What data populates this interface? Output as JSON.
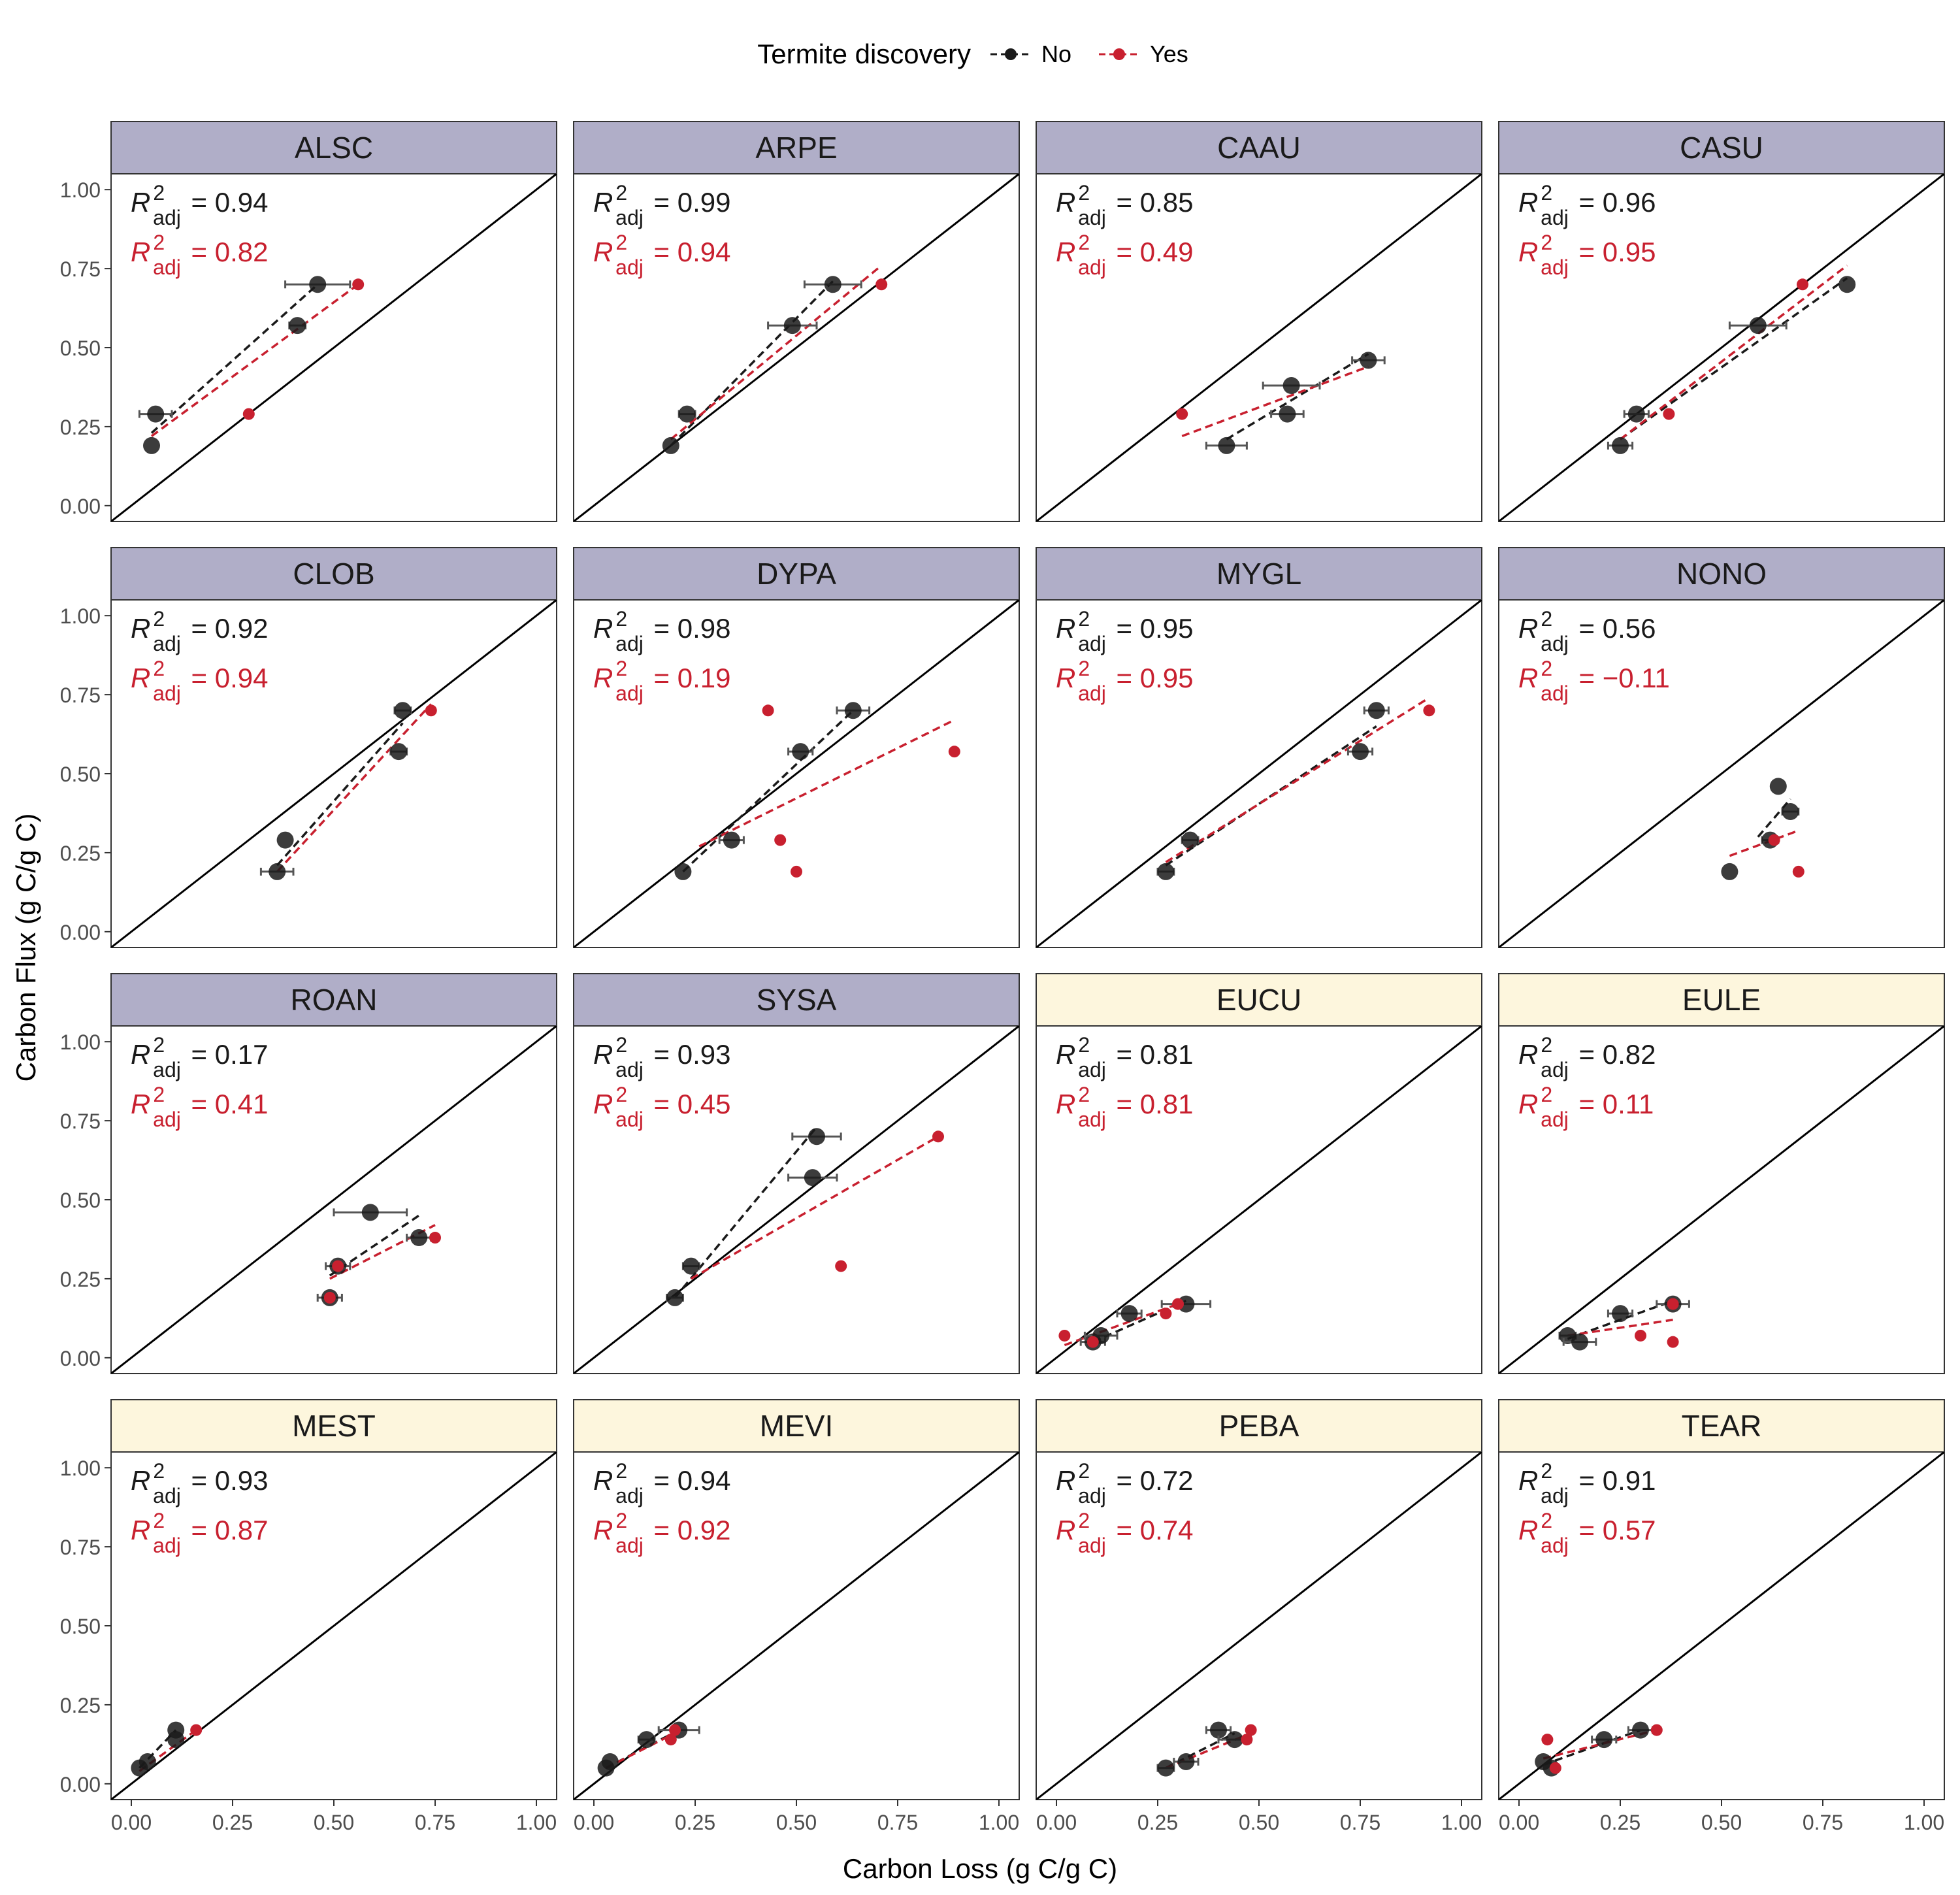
{
  "legend": {
    "title": "Termite discovery",
    "items": [
      {
        "label": "No",
        "color": "#1a1a1a"
      },
      {
        "label": "Yes",
        "color": "#c8202f"
      }
    ]
  },
  "axes": {
    "xlabel": "Carbon Loss (g C/g C)",
    "ylabel": "Carbon Flux (g C/g C)"
  },
  "colors": {
    "strip_purple": "#b0aec8",
    "strip_yellow": "#fdf6dd",
    "no_series": "#1a1a1a",
    "yes_series": "#c8202f"
  },
  "chart_data": {
    "type": "scatter",
    "layout": "faceted 4x4 grid",
    "xlim": [
      -0.05,
      1.05
    ],
    "ylim": [
      -0.05,
      1.05
    ],
    "xticks": [
      "0.00",
      "0.25",
      "0.50",
      "0.75",
      "1.00"
    ],
    "yticks": [
      "0.00",
      "0.25",
      "0.50",
      "0.75",
      "1.00"
    ],
    "reference_line": "1:1",
    "grid": false,
    "legend_position": "top",
    "facets": [
      {
        "name": "ALSC",
        "strip": "purple",
        "r2_no": "0.94",
        "r2_yes": "0.82",
        "no": [
          [
            0.05,
            0.19,
            0
          ],
          [
            0.06,
            0.29,
            0.04
          ],
          [
            0.41,
            0.57,
            0.02
          ],
          [
            0.46,
            0.7,
            0.08
          ]
        ],
        "yes": [
          [
            0.29,
            0.29
          ],
          [
            0.56,
            0.7
          ]
        ],
        "fit_no": [
          [
            0.05,
            0.23
          ],
          [
            0.46,
            0.7
          ]
        ],
        "fit_yes": [
          [
            0.05,
            0.22
          ],
          [
            0.56,
            0.7
          ]
        ]
      },
      {
        "name": "ARPE",
        "strip": "purple",
        "r2_no": "0.99",
        "r2_yes": "0.94",
        "no": [
          [
            0.19,
            0.19,
            0
          ],
          [
            0.23,
            0.29,
            0.02
          ],
          [
            0.49,
            0.57,
            0.06
          ],
          [
            0.59,
            0.7,
            0.07
          ]
        ],
        "yes": [
          [
            0.71,
            0.7
          ]
        ],
        "fit_no": [
          [
            0.19,
            0.19
          ],
          [
            0.59,
            0.71
          ]
        ],
        "fit_yes": [
          [
            0.19,
            0.21
          ],
          [
            0.71,
            0.76
          ]
        ]
      },
      {
        "name": "CAAU",
        "strip": "purple",
        "r2_no": "0.85",
        "r2_yes": "0.49",
        "no": [
          [
            0.42,
            0.19,
            0.05
          ],
          [
            0.57,
            0.29,
            0.04
          ],
          [
            0.58,
            0.38,
            0.07
          ],
          [
            0.77,
            0.46,
            0.04
          ]
        ],
        "yes": [
          [
            0.31,
            0.29
          ]
        ],
        "fit_no": [
          [
            0.42,
            0.21
          ],
          [
            0.77,
            0.48
          ]
        ],
        "fit_yes": [
          [
            0.31,
            0.22
          ],
          [
            0.77,
            0.44
          ]
        ]
      },
      {
        "name": "CASU",
        "strip": "purple",
        "r2_no": "0.96",
        "r2_yes": "0.95",
        "no": [
          [
            0.25,
            0.19,
            0.03
          ],
          [
            0.29,
            0.29,
            0.03
          ],
          [
            0.59,
            0.57,
            0.07
          ],
          [
            0.81,
            0.7,
            0
          ]
        ],
        "yes": [
          [
            0.37,
            0.29
          ],
          [
            0.7,
            0.7
          ]
        ],
        "fit_no": [
          [
            0.25,
            0.21
          ],
          [
            0.81,
            0.72
          ]
        ],
        "fit_yes": [
          [
            0.25,
            0.21
          ],
          [
            0.81,
            0.76
          ]
        ]
      },
      {
        "name": "CLOB",
        "strip": "purple",
        "r2_no": "0.92",
        "r2_yes": "0.94",
        "no": [
          [
            0.36,
            0.19,
            0.04
          ],
          [
            0.38,
            0.29,
            0
          ],
          [
            0.66,
            0.57,
            0.02
          ],
          [
            0.67,
            0.7,
            0.02
          ]
        ],
        "yes": [
          [
            0.74,
            0.7
          ]
        ],
        "fit_no": [
          [
            0.36,
            0.21
          ],
          [
            0.67,
            0.66
          ]
        ],
        "fit_yes": [
          [
            0.36,
            0.19
          ],
          [
            0.74,
            0.72
          ]
        ]
      },
      {
        "name": "DYPA",
        "strip": "purple",
        "r2_no": "0.98",
        "r2_yes": "0.19",
        "no": [
          [
            0.22,
            0.19,
            0
          ],
          [
            0.34,
            0.29,
            0.03
          ],
          [
            0.51,
            0.57,
            0.03
          ],
          [
            0.64,
            0.7,
            0.04
          ]
        ],
        "yes": [
          [
            0.43,
            0.7
          ],
          [
            0.46,
            0.29
          ],
          [
            0.5,
            0.19
          ],
          [
            0.89,
            0.57
          ]
        ],
        "fit_no": [
          [
            0.22,
            0.19
          ],
          [
            0.64,
            0.7
          ]
        ],
        "fit_yes": [
          [
            0.26,
            0.27
          ],
          [
            0.89,
            0.67
          ]
        ]
      },
      {
        "name": "MYGL",
        "strip": "purple",
        "r2_no": "0.95",
        "r2_yes": "0.95",
        "no": [
          [
            0.27,
            0.19,
            0.02
          ],
          [
            0.33,
            0.29,
            0.02
          ],
          [
            0.75,
            0.57,
            0.03
          ],
          [
            0.79,
            0.7,
            0.03
          ]
        ],
        "yes": [
          [
            0.92,
            0.7
          ]
        ],
        "fit_no": [
          [
            0.27,
            0.21
          ],
          [
            0.79,
            0.65
          ]
        ],
        "fit_yes": [
          [
            0.27,
            0.22
          ],
          [
            0.92,
            0.74
          ]
        ]
      },
      {
        "name": "NONO",
        "strip": "purple",
        "r2_no": "0.56",
        "r2_yes": "−0.11",
        "no": [
          [
            0.52,
            0.19,
            0
          ],
          [
            0.62,
            0.29,
            0.02
          ],
          [
            0.64,
            0.46,
            0
          ],
          [
            0.67,
            0.38,
            0.02
          ]
        ],
        "yes": [
          [
            0.63,
            0.29
          ],
          [
            0.69,
            0.19
          ]
        ],
        "fit_no": [
          [
            0.59,
            0.3
          ],
          [
            0.67,
            0.42
          ]
        ],
        "fit_yes": [
          [
            0.52,
            0.24
          ],
          [
            0.69,
            0.32
          ]
        ]
      },
      {
        "name": "ROAN",
        "strip": "purple",
        "r2_no": "0.17",
        "r2_yes": "0.41",
        "no": [
          [
            0.49,
            0.19,
            0.03
          ],
          [
            0.51,
            0.29,
            0.03
          ],
          [
            0.59,
            0.46,
            0.09
          ],
          [
            0.71,
            0.38,
            0.03
          ]
        ],
        "yes": [
          [
            0.49,
            0.19
          ],
          [
            0.51,
            0.29
          ],
          [
            0.75,
            0.38
          ]
        ],
        "fit_no": [
          [
            0.49,
            0.26
          ],
          [
            0.71,
            0.45
          ]
        ],
        "fit_yes": [
          [
            0.49,
            0.25
          ],
          [
            0.75,
            0.42
          ]
        ]
      },
      {
        "name": "SYSA",
        "strip": "purple",
        "r2_no": "0.93",
        "r2_yes": "0.45",
        "no": [
          [
            0.2,
            0.19,
            0.02
          ],
          [
            0.24,
            0.29,
            0.02
          ],
          [
            0.54,
            0.57,
            0.06
          ],
          [
            0.55,
            0.7,
            0.06
          ]
        ],
        "yes": [
          [
            0.61,
            0.29
          ],
          [
            0.85,
            0.7
          ]
        ],
        "fit_no": [
          [
            0.2,
            0.19
          ],
          [
            0.55,
            0.73
          ]
        ],
        "fit_yes": [
          [
            0.24,
            0.25
          ],
          [
            0.85,
            0.7
          ]
        ]
      },
      {
        "name": "EUCU",
        "strip": "yellow",
        "r2_no": "0.81",
        "r2_yes": "0.81",
        "no": [
          [
            0.09,
            0.05,
            0.03
          ],
          [
            0.11,
            0.07,
            0.04
          ],
          [
            0.18,
            0.14,
            0.03
          ],
          [
            0.32,
            0.17,
            0.06
          ]
        ],
        "yes": [
          [
            0.02,
            0.07
          ],
          [
            0.09,
            0.05
          ],
          [
            0.27,
            0.14
          ],
          [
            0.3,
            0.17
          ]
        ],
        "fit_no": [
          [
            0.09,
            0.05
          ],
          [
            0.32,
            0.18
          ]
        ],
        "fit_yes": [
          [
            0.02,
            0.04
          ],
          [
            0.3,
            0.17
          ]
        ]
      },
      {
        "name": "EULE",
        "strip": "yellow",
        "r2_no": "0.82",
        "r2_yes": "0.11",
        "no": [
          [
            0.12,
            0.07,
            0.02
          ],
          [
            0.15,
            0.05,
            0.04
          ],
          [
            0.25,
            0.14,
            0.03
          ],
          [
            0.38,
            0.17,
            0.04
          ]
        ],
        "yes": [
          [
            0.3,
            0.07
          ],
          [
            0.38,
            0.05
          ],
          [
            0.38,
            0.17
          ]
        ],
        "fit_no": [
          [
            0.12,
            0.06
          ],
          [
            0.38,
            0.18
          ]
        ],
        "fit_yes": [
          [
            0.12,
            0.07
          ],
          [
            0.38,
            0.12
          ]
        ]
      },
      {
        "name": "MEST",
        "strip": "yellow",
        "r2_no": "0.93",
        "r2_yes": "0.87",
        "no": [
          [
            0.02,
            0.05,
            0
          ],
          [
            0.04,
            0.07,
            0
          ],
          [
            0.11,
            0.14,
            0
          ],
          [
            0.11,
            0.17,
            0
          ]
        ],
        "yes": [
          [
            0.16,
            0.17
          ]
        ],
        "fit_no": [
          [
            0.02,
            0.05
          ],
          [
            0.11,
            0.17
          ]
        ],
        "fit_yes": [
          [
            0.02,
            0.04
          ],
          [
            0.16,
            0.17
          ]
        ]
      },
      {
        "name": "MEVI",
        "strip": "yellow",
        "r2_no": "0.94",
        "r2_yes": "0.92",
        "no": [
          [
            0.03,
            0.05,
            0
          ],
          [
            0.04,
            0.07,
            0
          ],
          [
            0.13,
            0.14,
            0.02
          ],
          [
            0.21,
            0.17,
            0.05
          ]
        ],
        "yes": [
          [
            0.19,
            0.14
          ],
          [
            0.2,
            0.17
          ]
        ],
        "fit_no": [
          [
            0.03,
            0.05
          ],
          [
            0.21,
            0.17
          ]
        ],
        "fit_yes": [
          [
            0.03,
            0.05
          ],
          [
            0.2,
            0.16
          ]
        ]
      },
      {
        "name": "PEBA",
        "strip": "yellow",
        "r2_no": "0.72",
        "r2_yes": "0.74",
        "no": [
          [
            0.27,
            0.05,
            0.02
          ],
          [
            0.32,
            0.07,
            0.03
          ],
          [
            0.4,
            0.17,
            0.03
          ],
          [
            0.44,
            0.14,
            0.04
          ]
        ],
        "yes": [
          [
            0.47,
            0.14
          ],
          [
            0.48,
            0.17
          ]
        ],
        "fit_no": [
          [
            0.27,
            0.05
          ],
          [
            0.44,
            0.16
          ]
        ],
        "fit_yes": [
          [
            0.27,
            0.05
          ],
          [
            0.48,
            0.16
          ]
        ]
      },
      {
        "name": "TEAR",
        "strip": "yellow",
        "r2_no": "0.91",
        "r2_yes": "0.57",
        "no": [
          [
            0.06,
            0.07,
            0
          ],
          [
            0.08,
            0.05,
            0
          ],
          [
            0.21,
            0.14,
            0.03
          ],
          [
            0.3,
            0.17,
            0.03
          ]
        ],
        "yes": [
          [
            0.07,
            0.14
          ],
          [
            0.09,
            0.05
          ],
          [
            0.34,
            0.17
          ]
        ],
        "fit_no": [
          [
            0.06,
            0.06
          ],
          [
            0.3,
            0.17
          ]
        ],
        "fit_yes": [
          [
            0.06,
            0.08
          ],
          [
            0.34,
            0.17
          ]
        ]
      }
    ]
  }
}
